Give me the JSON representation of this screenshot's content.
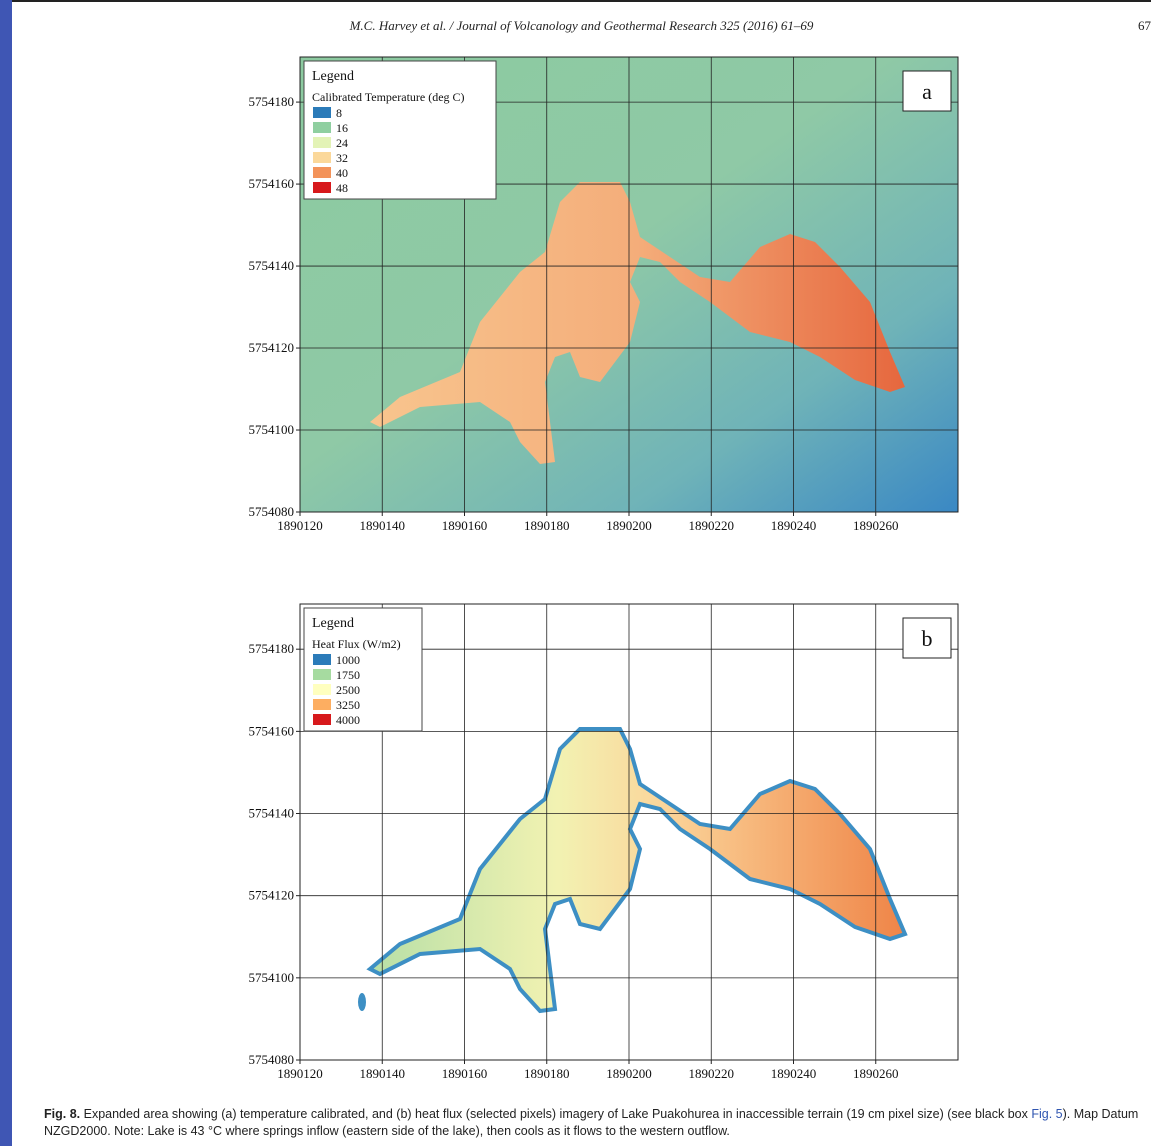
{
  "header": {
    "running_title": "M.C. Harvey et al. / Journal of Volcanology and Geothermal Research 325 (2016) 61–69",
    "page_number": "67"
  },
  "figures": [
    {
      "panel": "a",
      "xlim": [
        1890120,
        1890280
      ],
      "ylim": [
        5754080,
        5754191
      ],
      "xticks": [
        1890120,
        1890140,
        1890160,
        1890180,
        1890200,
        1890220,
        1890240,
        1890260
      ],
      "yticks": [
        5754080,
        5754100,
        5754120,
        5754140,
        5754160,
        5754180
      ],
      "legend": {
        "title": "Legend",
        "subtitle": "Calibrated Temperature (deg C)",
        "items": [
          {
            "label": 8,
            "color": "#2b7bb9"
          },
          {
            "label": 16,
            "color": "#8fcfa0"
          },
          {
            "label": 24,
            "color": "#e3f3b6"
          },
          {
            "label": 32,
            "color": "#fbd89a"
          },
          {
            "label": 40,
            "color": "#f3935a"
          },
          {
            "label": 48,
            "color": "#d7191c"
          }
        ]
      }
    },
    {
      "panel": "b",
      "xlim": [
        1890120,
        1890280
      ],
      "ylim": [
        5754080,
        5754191
      ],
      "xticks": [
        1890120,
        1890140,
        1890160,
        1890180,
        1890200,
        1890220,
        1890240,
        1890260
      ],
      "yticks": [
        5754080,
        5754100,
        5754120,
        5754140,
        5754160,
        5754180
      ],
      "legend": {
        "title": "Legend",
        "subtitle": "Heat Flux (W/m2)",
        "items": [
          {
            "label": 1000,
            "color": "#2b7bb9"
          },
          {
            "label": 1750,
            "color": "#a6dba0"
          },
          {
            "label": 2500,
            "color": "#ffffbf"
          },
          {
            "label": 3250,
            "color": "#fdae61"
          },
          {
            "label": 4000,
            "color": "#d7191c"
          }
        ]
      }
    }
  ],
  "caption": {
    "label": "Fig. 8.",
    "text": "Expanded area showing (a) temperature calibrated, and (b) heat flux (selected pixels) imagery of Lake Puakohurea in inaccessible terrain (19 cm pixel size) (see black box",
    "link": "Fig. 5",
    "text_end": ").",
    "note": "Map Datum NZGD2000. Note: Lake is 43 °C where springs inflow (eastern side of the lake), then cools as it flows to the western outflow."
  }
}
